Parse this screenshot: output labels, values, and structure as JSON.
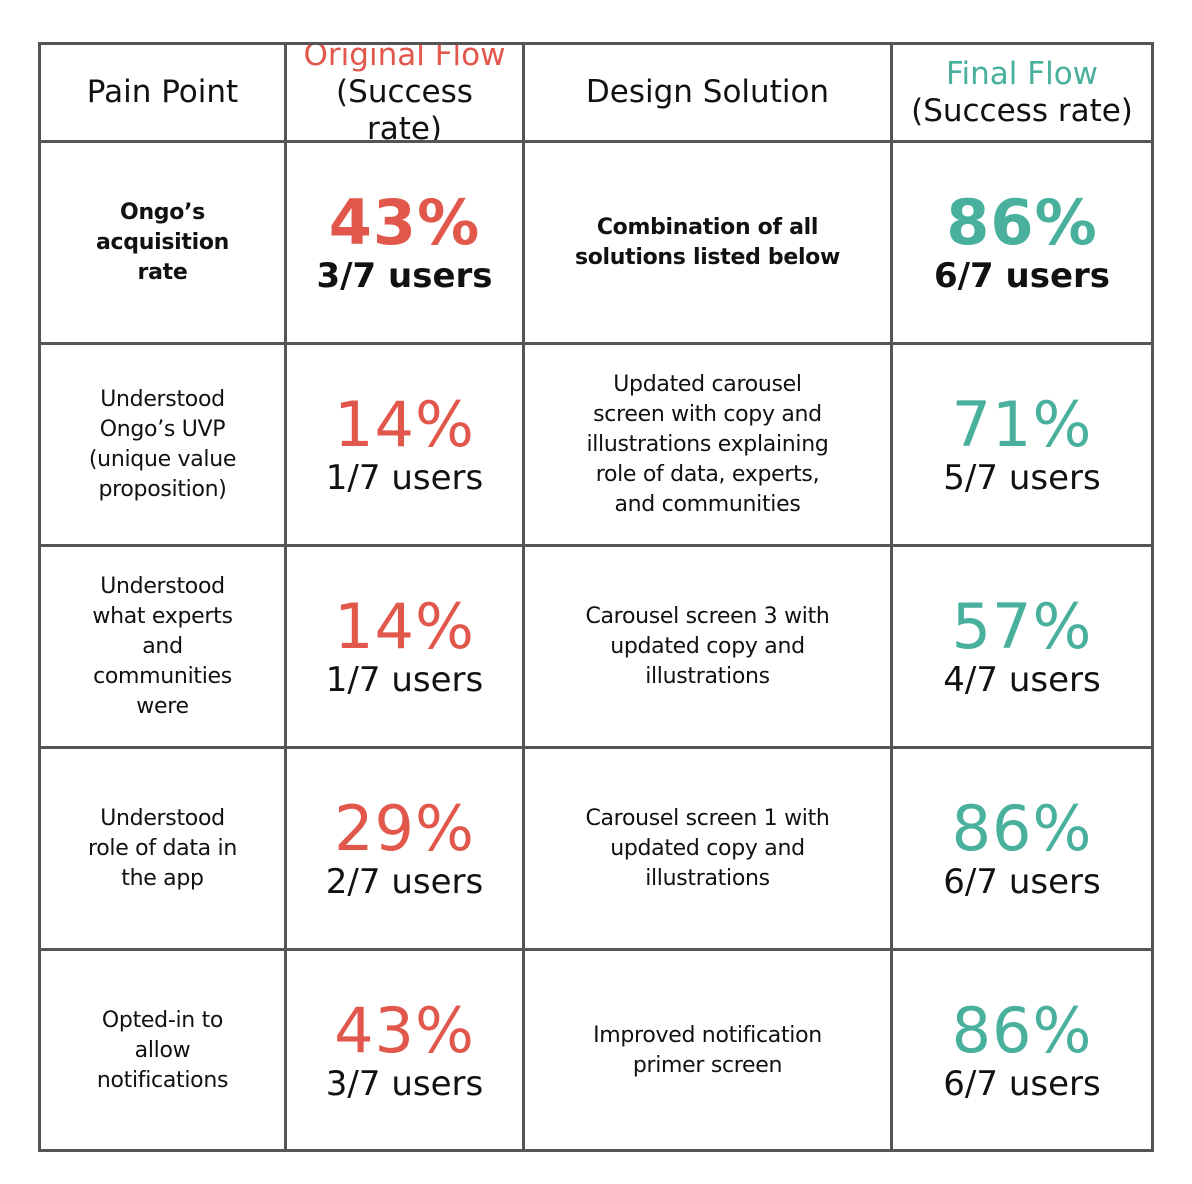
{
  "colors": {
    "original": "#E2574C",
    "final": "#48B09C",
    "border": "#555555"
  },
  "header": {
    "pain_point": "Pain Point",
    "original_title": "Original Flow",
    "original_sub": "(Success rate)",
    "solution": "Design Solution",
    "final_title": "Final Flow",
    "final_sub": "(Success rate)"
  },
  "rows": [
    {
      "pain": "Ongo’s\nacquisition\nrate",
      "original_pct": "43%",
      "original_users": "3/7 users",
      "solution": "Combination of all\nsolutions listed below",
      "final_pct": "86%",
      "final_users": "6/7 users"
    },
    {
      "pain": "Understood\nOngo’s UVP\n(unique value\nproposition)",
      "original_pct": "14%",
      "original_users": "1/7 users",
      "solution": "Updated carousel\nscreen with copy and\nillustrations explaining\nrole of data, experts,\nand communities",
      "final_pct": "71%",
      "final_users": "5/7 users"
    },
    {
      "pain": "Understood\nwhat experts\nand\ncommunities\nwere",
      "original_pct": "14%",
      "original_users": "1/7 users",
      "solution": "Carousel screen 3 with\nupdated copy and\nillustrations",
      "final_pct": "57%",
      "final_users": "4/7 users"
    },
    {
      "pain": "Understood\nrole of data in\nthe app",
      "original_pct": "29%",
      "original_users": "2/7 users",
      "solution": "Carousel screen 1 with\nupdated copy and\nillustrations",
      "final_pct": "86%",
      "final_users": "6/7 users"
    },
    {
      "pain": "Opted-in to\nallow\nnotifications",
      "original_pct": "43%",
      "original_users": "3/7 users",
      "solution": "Improved notification\nprimer screen",
      "final_pct": "86%",
      "final_users": "6/7 users"
    }
  ]
}
